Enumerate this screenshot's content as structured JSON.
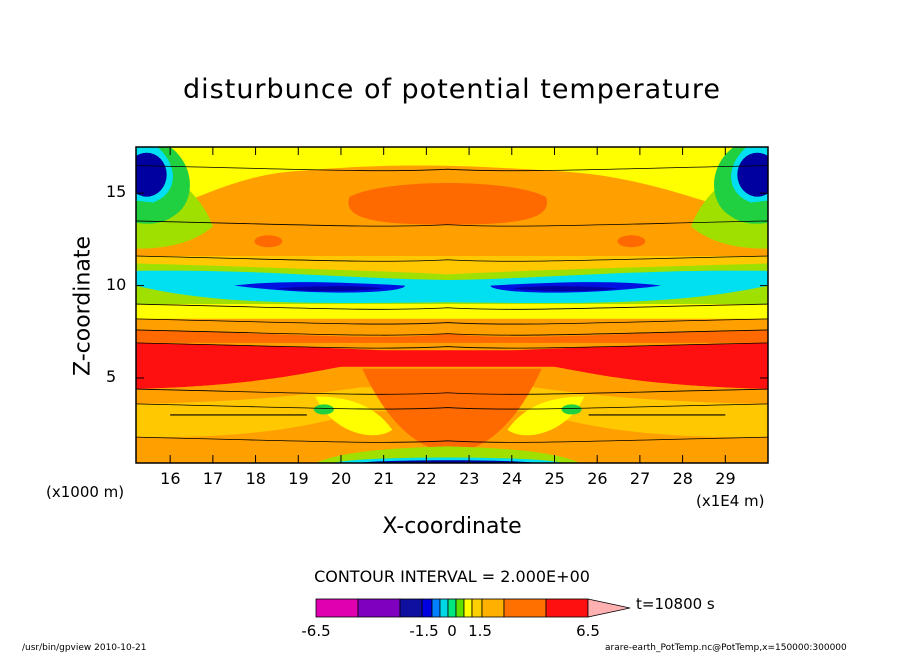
{
  "chart_data": {
    "type": "heatmap",
    "title": "disturbunce of potential temperature",
    "xlabel": "X-coordinate",
    "ylabel": "Z-coordinate",
    "x_unit_note": "(x1E4 m)",
    "y_unit_note": "(x1000 m)",
    "xlim": [
      15.2,
      30
    ],
    "ylim": [
      0.4,
      17.5
    ],
    "x_ticks": [
      16,
      17,
      18,
      19,
      20,
      21,
      22,
      23,
      24,
      25,
      26,
      27,
      28,
      29
    ],
    "y_ticks": [
      5,
      10,
      15
    ],
    "contour_interval": "CONTOUR INTERVAL = 2.000E+00",
    "time": "t=10800 s",
    "colorbar": {
      "colors": [
        "#e000b0",
        "#8000c0",
        "#1010a0",
        "#0000e0",
        "#0080ff",
        "#00d8e8",
        "#00e880",
        "#60e000",
        "#ffff00",
        "#ffd000",
        "#ffb000",
        "#ff7000",
        "#ff1010",
        "#ff7070",
        "#ffb0b0"
      ],
      "labels": [
        "-6.5",
        "-1.5",
        "0",
        "1.5",
        "6.5"
      ]
    },
    "colors": {
      "dark_blue": "#0000a0",
      "blue": "#0010e0",
      "cyan": "#00e0f0",
      "green": "#20d040",
      "yellow_green": "#a0e000",
      "yellow": "#ffff00",
      "light_orange": "#ffc800",
      "orange": "#ffa000",
      "dark_orange": "#ff6a00",
      "red": "#ff1010"
    },
    "bands": [
      {
        "name": "lower-mixed",
        "z": [
          0.4,
          4.5
        ],
        "color": "light_orange"
      },
      {
        "name": "low-yellow",
        "z": [
          2.8,
          4.6
        ],
        "color": "orange"
      },
      {
        "name": "red-layer",
        "z": [
          4.7,
          6.9
        ],
        "color": "red"
      },
      {
        "name": "orange-layer",
        "z": [
          6.9,
          8.2
        ],
        "color": "orange"
      },
      {
        "name": "yellow-layer",
        "z": [
          8.2,
          9.0
        ],
        "color": "yellow"
      },
      {
        "name": "cyan-layer",
        "z": [
          9.0,
          11.0
        ],
        "color": "cyan"
      },
      {
        "name": "blue-layer",
        "z": [
          9.6,
          10.2
        ],
        "color": "blue"
      },
      {
        "name": "upper-orange",
        "z": [
          11.0,
          17.5
        ],
        "color": "orange"
      },
      {
        "name": "upper-yellow",
        "z": [
          15.8,
          17.5
        ],
        "color": "yellow"
      }
    ]
  },
  "footer": {
    "left": "/usr/bin/gpview   2010-10-21",
    "right": "arare-earth_PotTemp.nc@PotTemp,x=150000:300000"
  }
}
